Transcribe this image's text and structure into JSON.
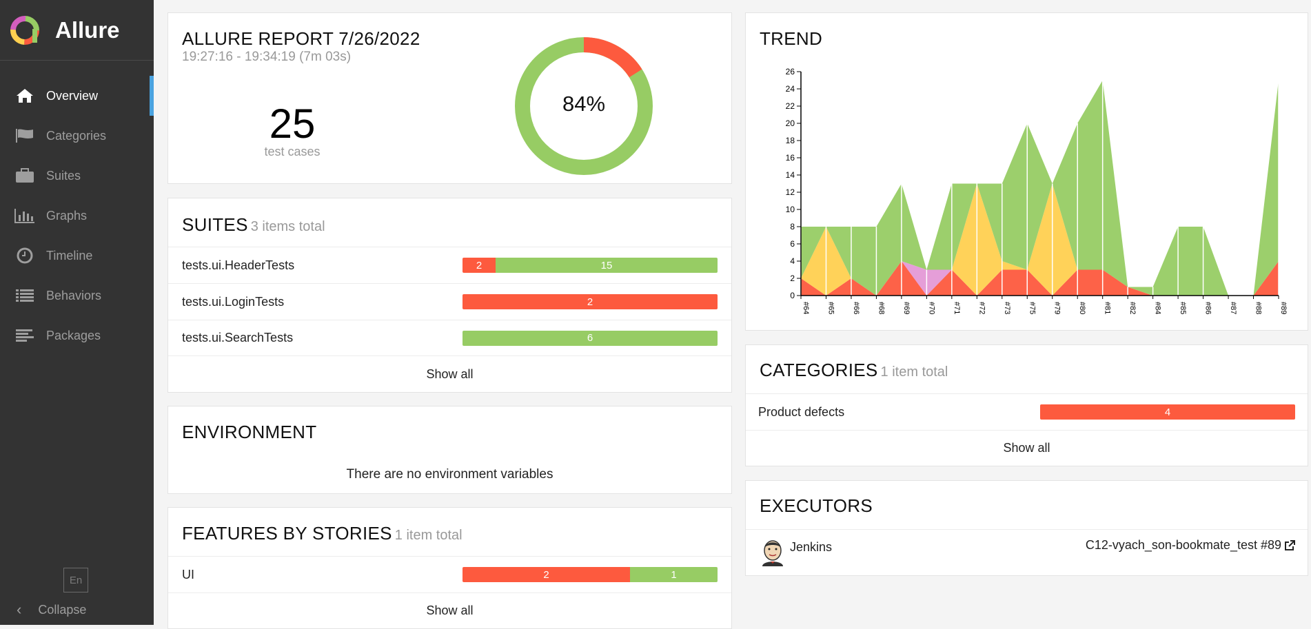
{
  "app": {
    "name": "Allure"
  },
  "colors": {
    "failed": "#fd5a3e",
    "passed": "#97cc64",
    "broken": "#ffd050",
    "unknown": "#d35ebe",
    "accent": "#4aa3e0"
  },
  "sidebar": {
    "items": [
      {
        "label": "Overview",
        "icon": "home-icon",
        "active": true
      },
      {
        "label": "Categories",
        "icon": "flag-icon"
      },
      {
        "label": "Suites",
        "icon": "briefcase-icon"
      },
      {
        "label": "Graphs",
        "icon": "bar-chart-icon"
      },
      {
        "label": "Timeline",
        "icon": "clock-icon"
      },
      {
        "label": "Behaviors",
        "icon": "list-icon"
      },
      {
        "label": "Packages",
        "icon": "align-left-icon"
      }
    ],
    "language": "En",
    "collapse_label": "Collapse"
  },
  "summary": {
    "title": "ALLURE REPORT 7/26/2022",
    "time": "19:27:16 - 19:34:19 (7m 03s)",
    "count": "25",
    "count_label": "test cases",
    "percent": "84%",
    "passed_fraction": 0.84
  },
  "suites": {
    "title": "SUITES",
    "subtitle": "3 items total",
    "rows": [
      {
        "name": "tests.ui.HeaderTests",
        "failed": 2,
        "passed": 15
      },
      {
        "name": "tests.ui.LoginTests",
        "failed": 2,
        "passed": 0
      },
      {
        "name": "tests.ui.SearchTests",
        "failed": 0,
        "passed": 6
      }
    ],
    "show_all": "Show all"
  },
  "environment": {
    "title": "ENVIRONMENT",
    "message": "There are no environment variables"
  },
  "features": {
    "title": "FEATURES BY STORIES",
    "subtitle": "1 item total",
    "rows": [
      {
        "name": "UI",
        "failed": 2,
        "passed": 1
      }
    ],
    "show_all": "Show all"
  },
  "trend": {
    "title": "TREND"
  },
  "categories": {
    "title": "CATEGORIES",
    "subtitle": "1 item total",
    "rows": [
      {
        "name": "Product defects",
        "value": 4
      }
    ],
    "show_all": "Show all"
  },
  "executors": {
    "title": "EXECUTORS",
    "name": "Jenkins",
    "build": "C12-vyach_son-bookmate_test #89",
    "icon": "jenkins-avatar"
  },
  "chart_data": {
    "type": "area",
    "title": "TREND",
    "x": [
      "#64",
      "#65",
      "#66",
      "#68",
      "#69",
      "#70",
      "#71",
      "#72",
      "#73",
      "#75",
      "#79",
      "#80",
      "#81",
      "#82",
      "#84",
      "#85",
      "#86",
      "#87",
      "#88",
      "#89"
    ],
    "ylim": [
      0,
      26
    ],
    "yticks": [
      0,
      2,
      4,
      6,
      8,
      10,
      12,
      14,
      16,
      18,
      20,
      22,
      24,
      26
    ],
    "series": [
      {
        "values": [
          2,
          0,
          2,
          0,
          4,
          0,
          3,
          0,
          3,
          3,
          0,
          3,
          3,
          1,
          0,
          0,
          0,
          0,
          0,
          4
        ]
      },
      {
        "values": [
          0,
          8,
          0,
          0,
          0,
          0,
          0,
          13,
          1,
          0,
          13,
          0,
          0,
          0,
          0,
          0,
          0,
          0,
          0,
          0
        ]
      },
      {
        "values": [
          0,
          0,
          0,
          0,
          0,
          3,
          0,
          0,
          0,
          0,
          0,
          0,
          0,
          0,
          0,
          0,
          0,
          0,
          0,
          0
        ]
      },
      {
        "values": [
          6,
          0,
          6,
          8,
          9,
          0,
          10,
          0,
          9,
          17,
          0,
          17,
          22,
          0,
          1,
          8,
          8,
          0,
          0,
          21
        ]
      }
    ],
    "grid": true
  }
}
